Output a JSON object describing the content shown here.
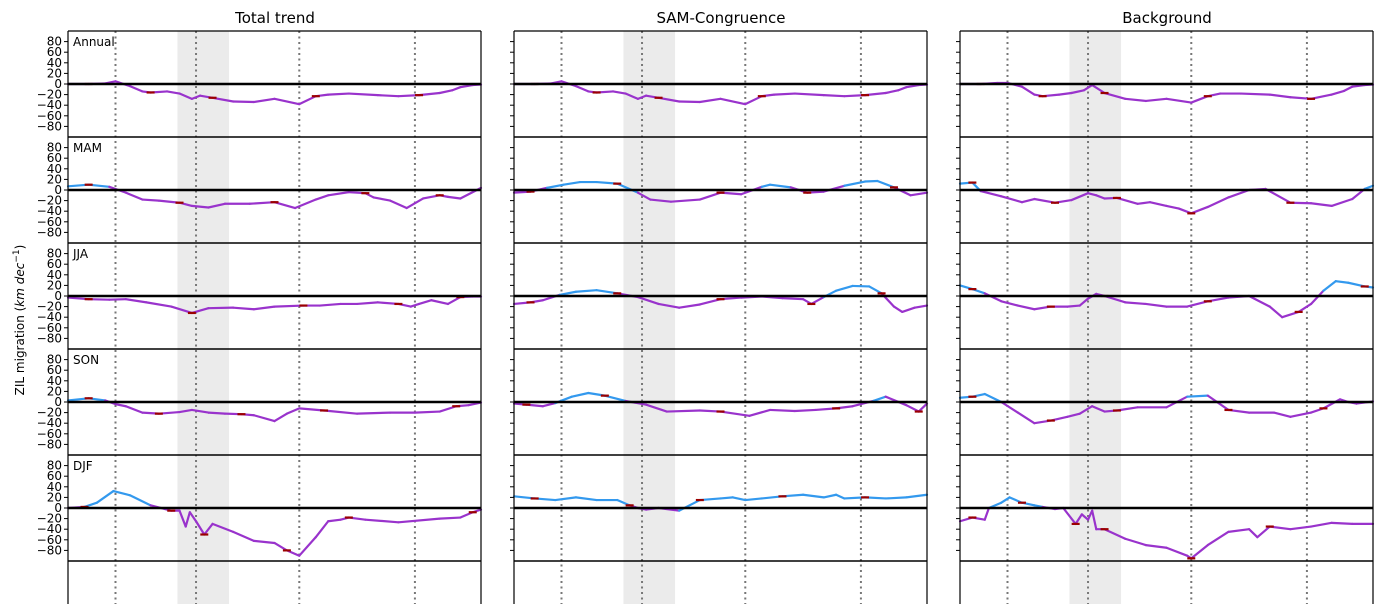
{
  "chart_data": {
    "type": "line",
    "columns": [
      "Total trend",
      "SAM-Congruence",
      "Background"
    ],
    "seasons": [
      "Annual",
      "MAM",
      "JJA",
      "SON",
      "DJF"
    ],
    "ylabel_main": "ZIL migration (",
    "ylabel_unit": "km dec",
    "ylabel_exp": "−1",
    "ylabel_close": ")",
    "ylim": [
      -100,
      100
    ],
    "yticks": [
      80,
      60,
      40,
      20,
      0,
      -20,
      -40,
      -60,
      -80
    ],
    "ytick_labels": [
      "80",
      "60",
      "40",
      "20",
      "0",
      "−20",
      "−40",
      "−60",
      "−80"
    ],
    "xlim": [
      0,
      100
    ],
    "vlines": [
      11.5,
      31,
      56,
      84
    ],
    "shade": [
      26.5,
      39
    ],
    "colors": {
      "blue": "#3399ee",
      "purple": "#9933cc",
      "red": "#9b0000"
    },
    "series": [
      [
        {
          "x": [
            0,
            5,
            9,
            11.5,
            15,
            18,
            20,
            24,
            27,
            30,
            32,
            35,
            40,
            45,
            50,
            56,
            60,
            63,
            68,
            75,
            80,
            85,
            90,
            93,
            95,
            98,
            100
          ],
          "y": [
            0,
            0,
            1,
            5,
            -4,
            -14,
            -16,
            -14,
            -18,
            -28,
            -22,
            -26,
            -33,
            -34,
            -28,
            -38,
            -23,
            -20,
            -18,
            -21,
            -23,
            -21,
            -17,
            -12,
            -6,
            -2,
            -1
          ]
        },
        {
          "x": [
            0,
            5,
            9,
            11.5,
            15,
            18,
            20,
            24,
            27,
            30,
            32,
            35,
            40,
            45,
            50,
            56,
            60,
            63,
            68,
            75,
            80,
            85,
            90,
            93,
            95,
            98,
            100
          ],
          "y": [
            0,
            0,
            1,
            5,
            -4,
            -14,
            -16,
            -14,
            -18,
            -28,
            -22,
            -26,
            -33,
            -34,
            -28,
            -38,
            -23,
            -20,
            -18,
            -21,
            -23,
            -21,
            -17,
            -12,
            -6,
            -2,
            -1
          ]
        },
        {
          "x": [
            0,
            5,
            9,
            11.5,
            15,
            18,
            20,
            24,
            27,
            30,
            32,
            35,
            40,
            45,
            50,
            56,
            60,
            63,
            68,
            75,
            80,
            85,
            90,
            93,
            95,
            98,
            100
          ],
          "y": [
            0,
            0,
            2,
            2,
            -5,
            -20,
            -23,
            -20,
            -17,
            -12,
            -2,
            -17,
            -28,
            -32,
            -28,
            -35,
            -23,
            -18,
            -18,
            -20,
            -25,
            -28,
            -20,
            -13,
            -5,
            -2,
            -1
          ]
        }
      ],
      [
        {
          "x": [
            0,
            5,
            10,
            14,
            18,
            22,
            27,
            30,
            34,
            38,
            44,
            50,
            55,
            60,
            63,
            68,
            72,
            74,
            78,
            82,
            86,
            90,
            92,
            95,
            100
          ],
          "y": [
            7,
            10,
            6,
            -5,
            -18,
            -20,
            -24,
            -30,
            -33,
            -26,
            -26,
            -23,
            -34,
            -18,
            -10,
            -4,
            -6,
            -14,
            -20,
            -34,
            -16,
            -10,
            -13,
            -16,
            4
          ]
        },
        {
          "x": [
            0,
            4,
            8,
            12,
            16,
            20,
            25,
            30,
            33,
            38,
            45,
            50,
            55,
            60,
            62,
            67,
            71,
            75,
            80,
            85,
            88,
            92,
            96,
            100
          ],
          "y": [
            -5,
            -3,
            4,
            10,
            15,
            15,
            12,
            -5,
            -18,
            -22,
            -18,
            -5,
            -8,
            6,
            10,
            5,
            -5,
            -3,
            8,
            16,
            17,
            5,
            -10,
            -5
          ]
        },
        {
          "x": [
            0,
            3,
            5,
            10,
            15,
            18,
            23,
            27,
            31,
            33,
            35,
            38,
            43,
            46,
            50,
            53,
            56,
            60,
            65,
            70,
            74,
            80,
            85,
            90,
            95,
            98,
            100
          ],
          "y": [
            12,
            14,
            -2,
            -12,
            -23,
            -17,
            -24,
            -19,
            -6,
            -10,
            -16,
            -15,
            -26,
            -23,
            -30,
            -35,
            -44,
            -32,
            -14,
            0,
            2,
            -24,
            -25,
            -30,
            -17,
            2,
            8
          ]
        }
      ],
      [
        {
          "x": [
            0,
            5,
            10,
            14,
            19,
            25,
            30,
            34,
            40,
            45,
            50,
            57,
            61,
            66,
            70,
            75,
            80,
            83,
            85,
            88,
            92,
            95,
            98,
            100
          ],
          "y": [
            -3,
            -6,
            -7,
            -6,
            -12,
            -20,
            -32,
            -23,
            -22,
            -25,
            -20,
            -18,
            -18,
            -15,
            -15,
            -12,
            -15,
            -20,
            -15,
            -8,
            -15,
            -2,
            -1,
            -1
          ]
        },
        {
          "x": [
            0,
            4,
            7,
            11,
            15,
            20,
            25,
            30,
            35,
            40,
            45,
            50,
            55,
            60,
            65,
            70,
            72,
            75,
            78,
            82,
            86,
            89,
            92,
            94,
            97,
            100
          ],
          "y": [
            -15,
            -12,
            -8,
            2,
            8,
            11,
            5,
            -2,
            -15,
            -22,
            -16,
            -6,
            -3,
            -1,
            -4,
            -6,
            -15,
            -2,
            10,
            19,
            18,
            5,
            -20,
            -30,
            -22,
            -18
          ]
        },
        {
          "x": [
            0,
            3,
            6,
            10,
            14,
            18,
            22,
            26,
            29,
            31,
            33,
            35,
            40,
            45,
            50,
            55,
            60,
            65,
            70,
            75,
            78,
            82,
            85,
            88,
            91,
            94,
            98,
            100
          ],
          "y": [
            20,
            13,
            5,
            -10,
            -18,
            -25,
            -20,
            -20,
            -18,
            -5,
            4,
            0,
            -12,
            -15,
            -20,
            -20,
            -10,
            -3,
            0,
            -20,
            -40,
            -30,
            -15,
            10,
            28,
            25,
            18,
            16
          ]
        }
      ],
      [
        {
          "x": [
            0,
            5,
            9,
            11.5,
            14,
            18,
            22,
            27,
            30,
            34,
            38,
            42,
            45,
            50,
            53,
            56,
            62,
            70,
            78,
            84,
            90,
            94,
            97,
            100
          ],
          "y": [
            3,
            7,
            3,
            -4,
            -8,
            -20,
            -22,
            -19,
            -15,
            -20,
            -22,
            -23,
            -25,
            -36,
            -22,
            -12,
            -16,
            -22,
            -20,
            -20,
            -18,
            -8,
            -6,
            -1
          ]
        },
        {
          "x": [
            0,
            3,
            7,
            10,
            14,
            18,
            22,
            27,
            32,
            37,
            45,
            50,
            57,
            62,
            68,
            73,
            78,
            82,
            87,
            90,
            95,
            98,
            100
          ],
          "y": [
            -3,
            -5,
            -8,
            -2,
            10,
            17,
            12,
            2,
            -5,
            -18,
            -16,
            -18,
            -26,
            -15,
            -17,
            -15,
            -12,
            -8,
            2,
            10,
            -6,
            -18,
            -3
          ]
        },
        {
          "x": [
            0,
            3,
            6,
            10,
            14,
            18,
            22,
            26,
            29,
            32,
            35,
            38,
            43,
            50,
            55,
            60,
            65,
            70,
            76,
            80,
            85,
            88,
            92,
            94,
            96,
            100
          ],
          "y": [
            8,
            10,
            15,
            0,
            -20,
            -40,
            -35,
            -28,
            -22,
            -8,
            -18,
            -16,
            -10,
            -10,
            10,
            12,
            -15,
            -20,
            -20,
            -28,
            -20,
            -12,
            5,
            0,
            -3,
            1
          ]
        }
      ],
      [
        {
          "x": [
            0,
            4,
            7,
            11,
            15,
            20,
            25,
            27,
            28.5,
            29.5,
            31,
            33,
            35,
            40,
            45,
            50,
            53,
            56,
            60,
            63,
            66,
            68,
            72,
            80,
            90,
            95,
            98,
            100
          ],
          "y": [
            0,
            2,
            10,
            32,
            24,
            5,
            -5,
            -5,
            -35,
            -8,
            -25,
            -50,
            -30,
            -45,
            -62,
            -66,
            -80,
            -90,
            -55,
            -25,
            -22,
            -18,
            -22,
            -27,
            -20,
            -18,
            -8,
            -3
          ]
        },
        {
          "x": [
            0,
            5,
            10,
            15,
            20,
            25,
            28,
            30,
            32,
            35,
            40,
            45,
            50,
            53,
            56,
            60,
            65,
            70,
            75,
            78,
            80,
            85,
            90,
            95,
            100
          ],
          "y": [
            22,
            18,
            15,
            20,
            15,
            15,
            5,
            0,
            -3,
            0,
            -5,
            15,
            18,
            20,
            15,
            18,
            22,
            25,
            20,
            25,
            18,
            20,
            18,
            20,
            25
          ]
        },
        {
          "x": [
            0,
            3,
            6,
            7,
            10,
            12,
            15,
            18,
            20,
            23,
            25,
            28,
            29.5,
            31,
            32,
            33,
            35,
            40,
            45,
            50,
            55,
            56,
            60,
            65,
            70,
            72,
            75,
            80,
            85,
            90,
            95,
            100
          ],
          "y": [
            -25,
            -18,
            -22,
            0,
            10,
            20,
            10,
            5,
            2,
            -2,
            0,
            -30,
            -12,
            -22,
            -5,
            -40,
            -40,
            -58,
            -70,
            -75,
            -90,
            -95,
            -70,
            -45,
            -40,
            -55,
            -35,
            -40,
            -35,
            -28,
            -30,
            -30
          ]
        }
      ]
    ]
  }
}
